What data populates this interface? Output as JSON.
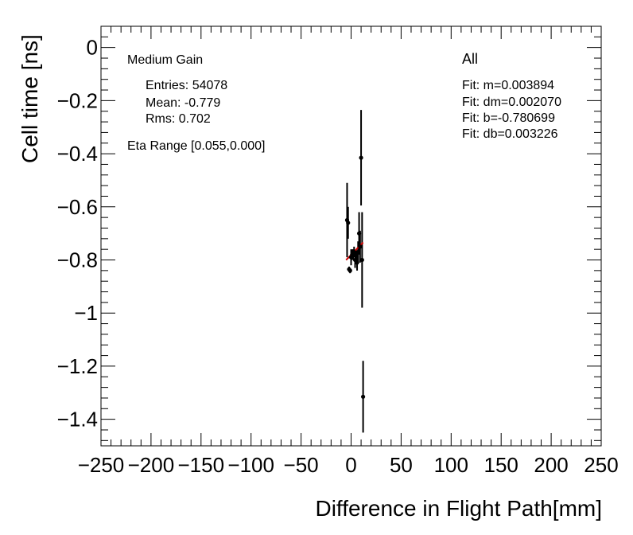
{
  "chart_data": {
    "type": "scatter",
    "title": "",
    "xlabel": "Difference in Flight Path[mm]",
    "ylabel": "Cell time [ns]",
    "xlim": [
      -250,
      250
    ],
    "ylim": [
      -1.5,
      0.08
    ],
    "x_ticks": [
      -250,
      -200,
      -150,
      -100,
      -50,
      0,
      50,
      100,
      150,
      200,
      250
    ],
    "x_tick_labels": [
      "−250",
      "−200",
      "−150",
      "−100",
      "−50",
      "0",
      "50",
      "100",
      "150",
      "200",
      "250"
    ],
    "y_ticks": [
      0,
      -0.2,
      -0.4,
      -0.6,
      -0.8,
      -1.0,
      -1.2,
      -1.4
    ],
    "y_tick_labels": [
      "0",
      "−0.2",
      "−0.4",
      "−0.6",
      "−0.8",
      "−1",
      "−1.2",
      "−1.4"
    ],
    "grid": false,
    "series": [
      {
        "marker_color": "#000000",
        "points": [
          {
            "x": -4,
            "y": -0.65,
            "err": 0.14
          },
          {
            "x": -3,
            "y": -0.66,
            "err": 0.06
          },
          {
            "x": -2,
            "y": -0.835,
            "err": 0.01
          },
          {
            "x": -1,
            "y": -0.84,
            "err": 0.01
          },
          {
            "x": 0,
            "y": -0.79,
            "err": 0.03
          },
          {
            "x": 1,
            "y": -0.78,
            "err": 0.02
          },
          {
            "x": 2,
            "y": -0.78,
            "err": 0.02
          },
          {
            "x": 3,
            "y": -0.77,
            "err": 0.02
          },
          {
            "x": 4,
            "y": -0.8,
            "err": 0.03
          },
          {
            "x": 5,
            "y": -0.78,
            "err": 0.02
          },
          {
            "x": 6,
            "y": -0.81,
            "err": 0.03
          },
          {
            "x": 7,
            "y": -0.77,
            "err": 0.04
          },
          {
            "x": 8,
            "y": -0.7,
            "err": 0.08
          },
          {
            "x": 9,
            "y": -0.75,
            "err": 0.06
          },
          {
            "x": 10,
            "y": -0.415,
            "err": 0.18
          },
          {
            "x": 11,
            "y": -0.8,
            "err": 0.18
          },
          {
            "x": 12,
            "y": -1.315,
            "err": 0.135
          }
        ]
      }
    ],
    "fit_line": {
      "color": "#cc0000",
      "x_range": [
        -5,
        12
      ],
      "m": 0.003894,
      "b": -0.780699
    },
    "stats_left": {
      "title": "Medium Gain",
      "entries": "Entries: 54078",
      "mean": "Mean: -0.779",
      "rms": "Rms: 0.702",
      "eta": "Eta Range [0.055,0.000]"
    },
    "stats_right": {
      "title": "All",
      "fit_m": "Fit: m=0.003894",
      "fit_dm": "Fit: dm=0.002070",
      "fit_b": "Fit: b=-0.780699",
      "fit_db": "Fit: db=0.003226"
    }
  }
}
